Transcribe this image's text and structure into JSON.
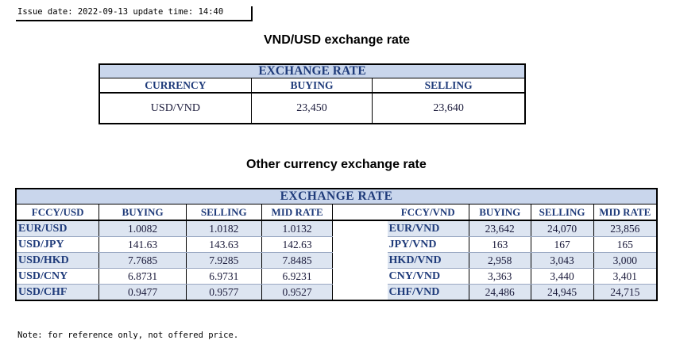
{
  "issue": {
    "text": "Issue date: 2022-09-13 update time: 14:40"
  },
  "vnd_usd": {
    "title": "VND/USD exchange rate",
    "band": "EXCHANGE RATE",
    "headers": [
      "CURRENCY",
      "BUYING",
      "SELLING"
    ],
    "row": [
      "USD/VND",
      "23,450",
      "23,640"
    ]
  },
  "other": {
    "title": "Other currency exchange rate",
    "band": "EXCHANGE RATE",
    "left_headers": [
      "FCCY/USD",
      "BUYING",
      "SELLING",
      "MID RATE"
    ],
    "right_headers": [
      "FCCY/VND",
      "BUYING",
      "SELLING",
      "MID RATE"
    ],
    "rows": [
      {
        "l": [
          "EUR/USD",
          "1.0082",
          "1.0182",
          "1.0132"
        ],
        "r": [
          "EUR/VND",
          "23,642",
          "24,070",
          "23,856"
        ]
      },
      {
        "l": [
          "USD/JPY",
          "141.63",
          "143.63",
          "142.63"
        ],
        "r": [
          "JPY/VND",
          "163",
          "167",
          "165"
        ]
      },
      {
        "l": [
          "USD/HKD",
          "7.7685",
          "7.9285",
          "7.8485"
        ],
        "r": [
          "HKD/VND",
          "2,958",
          "3,043",
          "3,000"
        ]
      },
      {
        "l": [
          "USD/CNY",
          "6.8731",
          "6.9731",
          "6.9231"
        ],
        "r": [
          "CNY/VND",
          "3,363",
          "3,440",
          "3,401"
        ]
      },
      {
        "l": [
          "USD/CHF",
          "0.9477",
          "0.9577",
          "0.9527"
        ],
        "r": [
          "CHF/VND",
          "24,486",
          "24,945",
          "24,715"
        ]
      }
    ]
  },
  "note": {
    "text": "Note: for reference only, not offered price."
  }
}
